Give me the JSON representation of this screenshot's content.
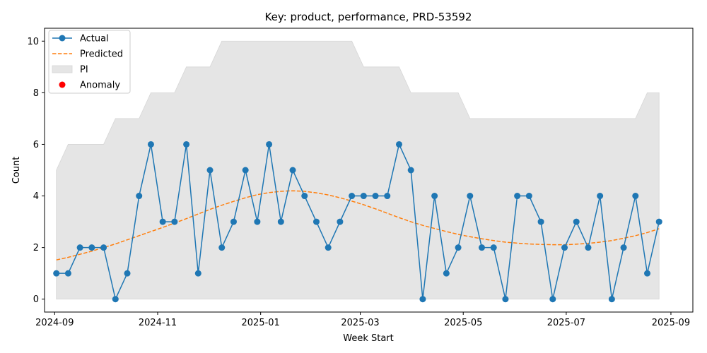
{
  "chart_data": {
    "type": "line",
    "title": "Key: product, performance, PRD-53592",
    "xlabel": "Week Start",
    "ylabel": "Count",
    "ylim": [
      -0.5,
      10.5
    ],
    "xlim": [
      "2024-08-26",
      "2025-09-14"
    ],
    "yticks": [
      0,
      2,
      4,
      6,
      8,
      10
    ],
    "xticks": [
      {
        "date": "2024-09-01",
        "label": "2024-09"
      },
      {
        "date": "2024-11-01",
        "label": "2024-11"
      },
      {
        "date": "2025-01-01",
        "label": "2025-01"
      },
      {
        "date": "2025-03-01",
        "label": "2025-03"
      },
      {
        "date": "2025-05-01",
        "label": "2025-05"
      },
      {
        "date": "2025-07-01",
        "label": "2025-07"
      },
      {
        "date": "2025-09-01",
        "label": "2025-09"
      }
    ],
    "legend": {
      "position": "top-left",
      "entries": [
        "Actual",
        "Predicted",
        "PI",
        "Anomaly"
      ]
    },
    "colors": {
      "actual": "#1f77b4",
      "predicted": "#ff7f0e",
      "pi": "#e5e5e5",
      "anomaly": "#ff0000"
    },
    "x": [
      "2024-09-02",
      "2024-09-09",
      "2024-09-16",
      "2024-09-23",
      "2024-09-30",
      "2024-10-07",
      "2024-10-14",
      "2024-10-21",
      "2024-10-28",
      "2024-11-04",
      "2024-11-11",
      "2024-11-18",
      "2024-11-25",
      "2024-12-02",
      "2024-12-09",
      "2024-12-16",
      "2024-12-23",
      "2024-12-30",
      "2025-01-06",
      "2025-01-13",
      "2025-01-20",
      "2025-01-27",
      "2025-02-03",
      "2025-02-10",
      "2025-02-17",
      "2025-02-24",
      "2025-03-03",
      "2025-03-10",
      "2025-03-17",
      "2025-03-24",
      "2025-03-31",
      "2025-04-07",
      "2025-04-14",
      "2025-04-21",
      "2025-04-28",
      "2025-05-05",
      "2025-05-12",
      "2025-05-19",
      "2025-05-26",
      "2025-06-02",
      "2025-06-09",
      "2025-06-16",
      "2025-06-23",
      "2025-06-30",
      "2025-07-07",
      "2025-07-14",
      "2025-07-21",
      "2025-07-28",
      "2025-08-04",
      "2025-08-11",
      "2025-08-18",
      "2025-08-25"
    ],
    "series": [
      {
        "name": "Actual",
        "values": [
          1,
          1,
          2,
          2,
          2,
          0,
          1,
          4,
          6,
          3,
          3,
          6,
          1,
          5,
          2,
          3,
          5,
          3,
          6,
          3,
          5,
          4,
          3,
          2,
          3,
          4,
          4,
          4,
          4,
          6,
          5,
          0,
          4,
          1,
          2,
          4,
          2,
          2,
          0,
          4,
          4,
          3,
          0,
          2,
          3,
          2,
          4,
          0,
          2,
          4,
          1,
          3
        ]
      },
      {
        "name": "Predicted",
        "values": [
          1.52,
          1.62,
          1.74,
          1.86,
          2.0,
          2.14,
          2.3,
          2.46,
          2.62,
          2.78,
          2.95,
          3.12,
          3.3,
          3.48,
          3.64,
          3.79,
          3.93,
          4.05,
          4.13,
          4.18,
          4.2,
          4.18,
          4.12,
          4.04,
          3.93,
          3.8,
          3.66,
          3.5,
          3.33,
          3.16,
          3.0,
          2.86,
          2.74,
          2.62,
          2.51,
          2.42,
          2.34,
          2.27,
          2.21,
          2.17,
          2.14,
          2.12,
          2.11,
          2.11,
          2.13,
          2.16,
          2.21,
          2.27,
          2.36,
          2.46,
          2.58,
          2.73
        ]
      }
    ],
    "pi_lower": [
      0,
      0,
      0,
      0,
      0,
      0,
      0,
      0,
      0,
      0,
      0,
      0,
      0,
      0,
      0,
      0,
      0,
      0,
      0,
      0,
      0,
      0,
      0,
      0,
      0,
      0,
      0,
      0,
      0,
      0,
      0,
      0,
      0,
      0,
      0,
      0,
      0,
      0,
      0,
      0,
      0,
      0,
      0,
      0,
      0,
      0,
      0,
      0,
      0,
      0,
      0,
      0
    ],
    "pi_upper": [
      5,
      6,
      6,
      6,
      6,
      7,
      7,
      7,
      8,
      8,
      8,
      9,
      9,
      9,
      10,
      10,
      10,
      10,
      10,
      10,
      10,
      10,
      10,
      10,
      10,
      10,
      9,
      9,
      9,
      9,
      8,
      8,
      8,
      8,
      8,
      7,
      7,
      7,
      7,
      7,
      7,
      7,
      7,
      7,
      7,
      7,
      7,
      7,
      7,
      7,
      8,
      8
    ],
    "anomalies": []
  }
}
